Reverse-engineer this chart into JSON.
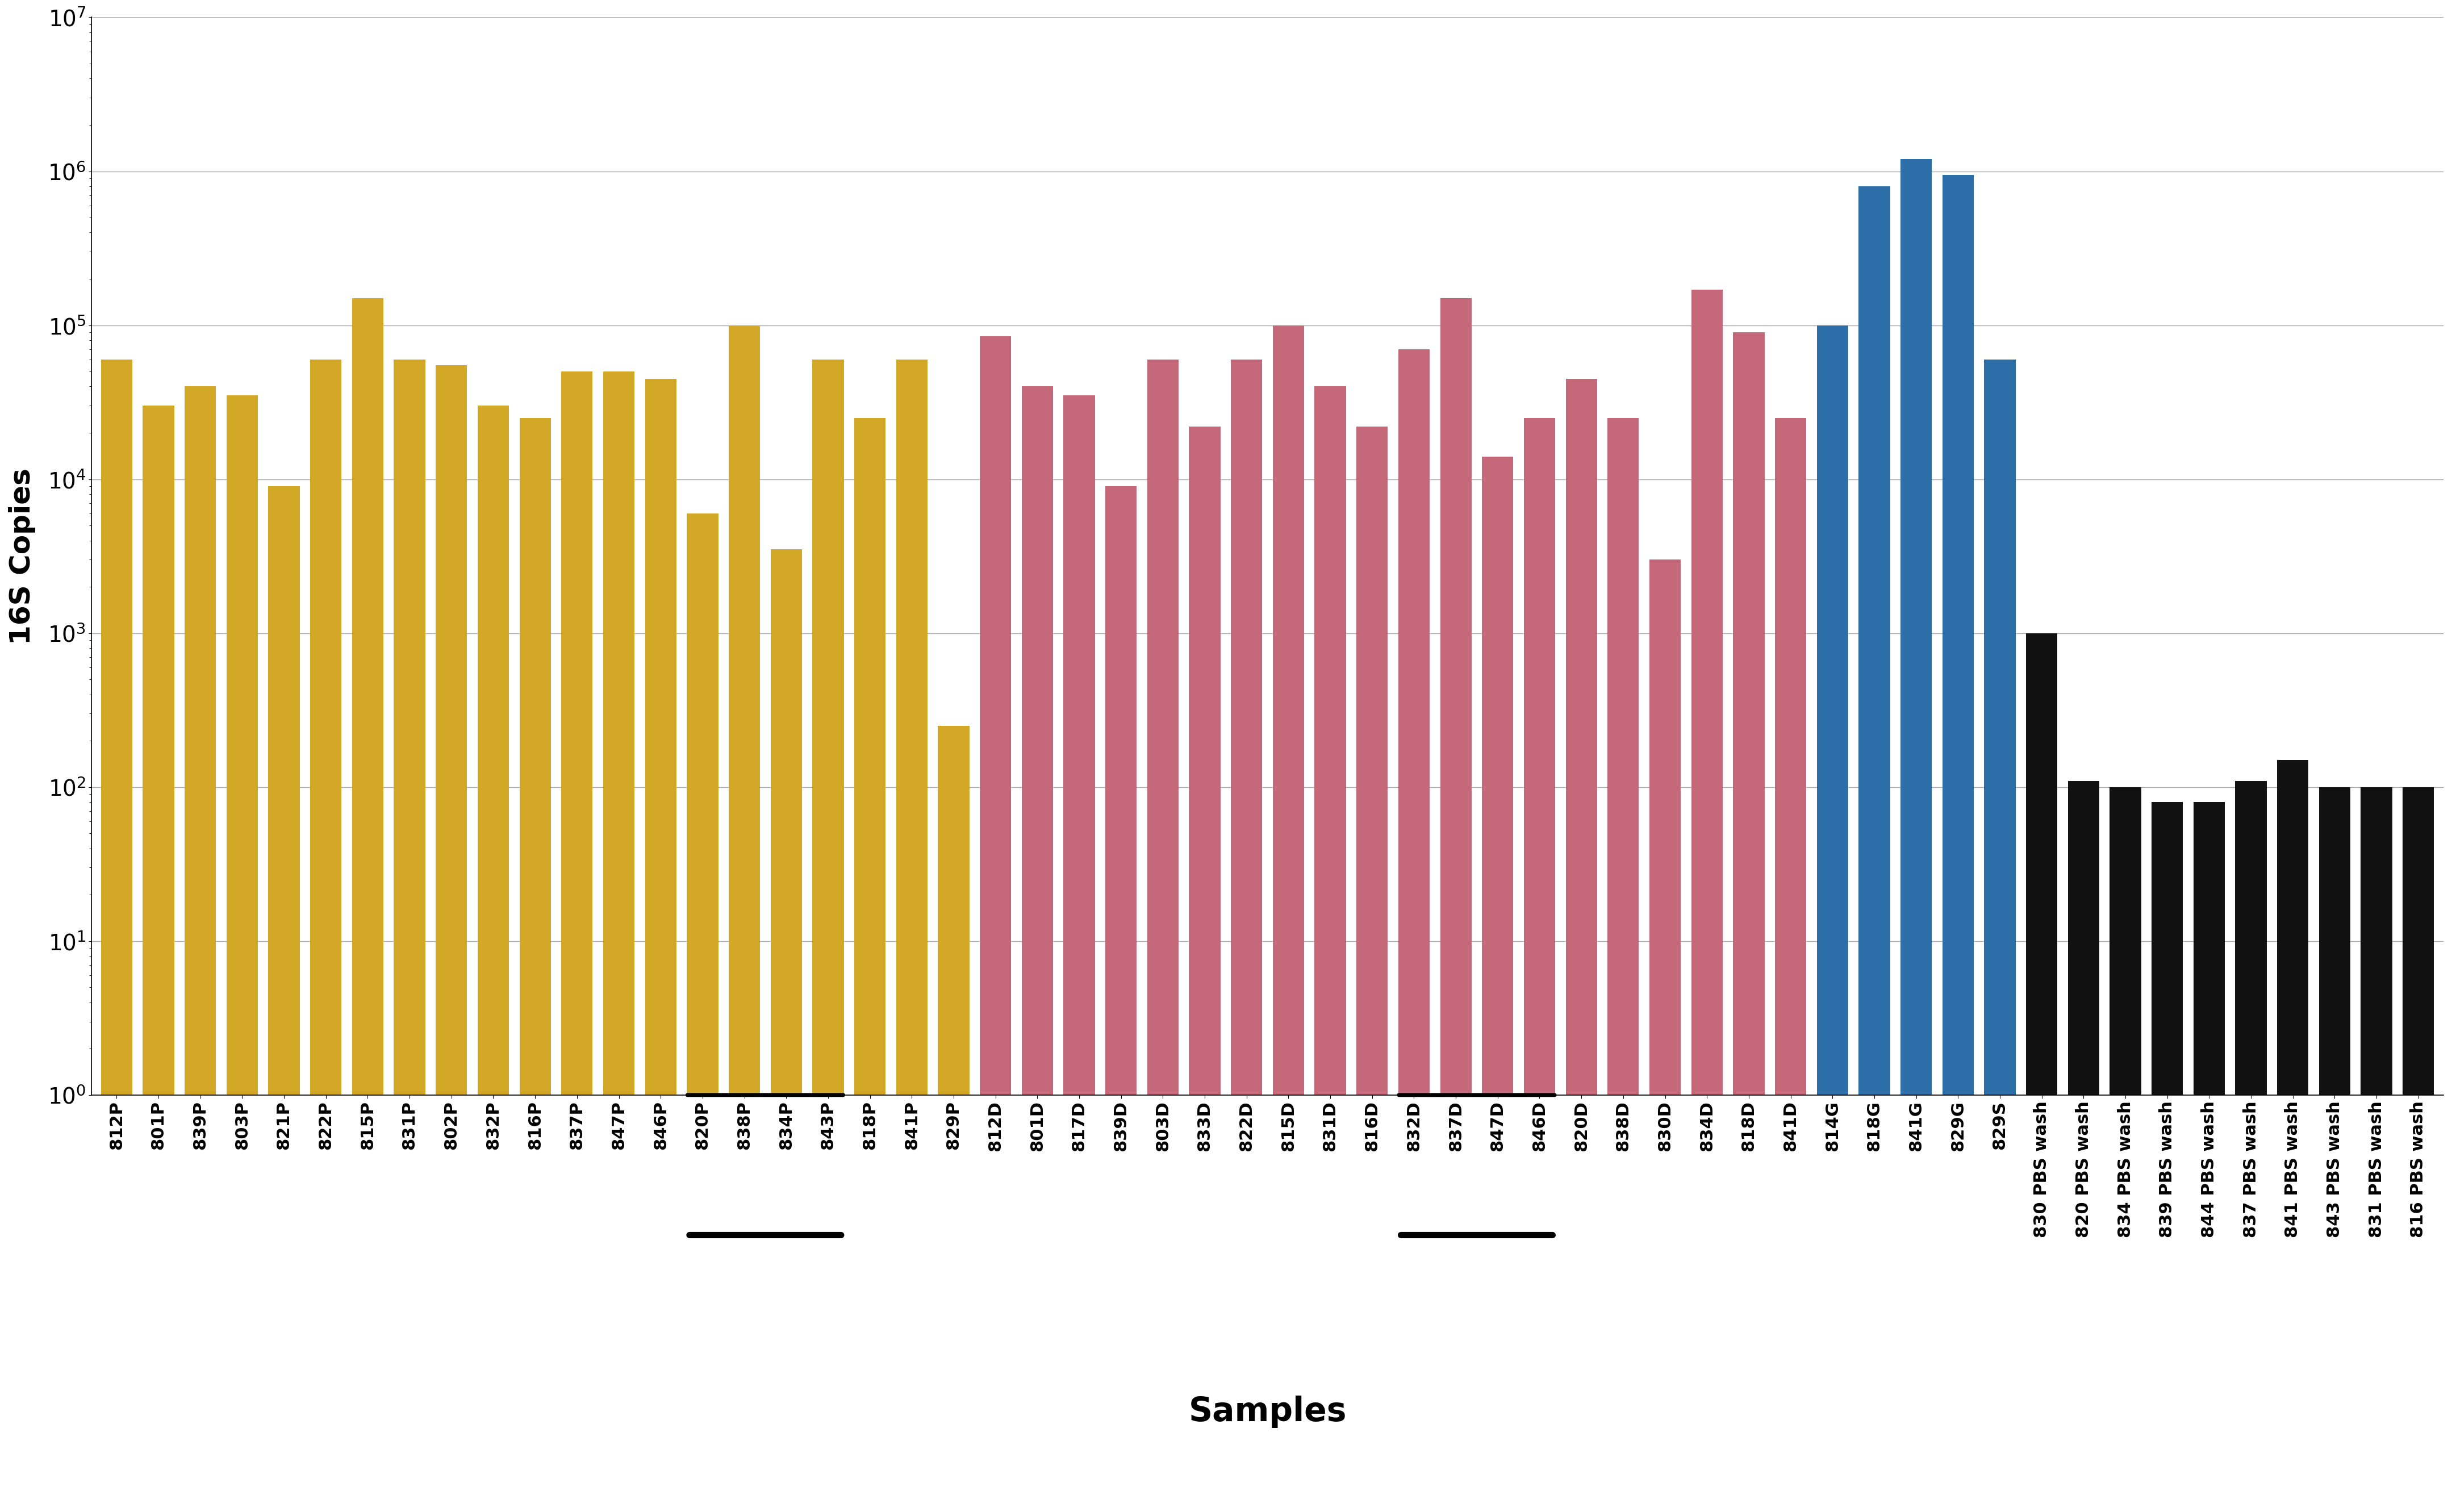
{
  "categories": [
    "812P",
    "801P",
    "839P",
    "803P",
    "821P",
    "822P",
    "815P",
    "831P",
    "802P",
    "832P",
    "816P",
    "837P",
    "847P",
    "846P",
    "820P",
    "838P",
    "834P",
    "843P",
    "818P",
    "841P",
    "829P",
    "812D",
    "801D",
    "817D",
    "839D",
    "803D",
    "833D",
    "822D",
    "815D",
    "831D",
    "816D",
    "832D",
    "837D",
    "847D",
    "846D",
    "820D",
    "838D",
    "830D",
    "834D",
    "818D",
    "841D",
    "814G",
    "818G",
    "841G",
    "829G",
    "829S",
    "830 PBS wash",
    "820 PBS wash",
    "834 PBS wash",
    "839 PBS wash",
    "844 PBS wash",
    "837 PBS wash",
    "841 PBS wash",
    "843 PBS wash",
    "831 PBS wash",
    "816 PBS wash"
  ],
  "values": [
    60000,
    30000,
    40000,
    35000,
    9000,
    60000,
    150000,
    60000,
    55000,
    30000,
    25000,
    50000,
    50000,
    45000,
    6000,
    100000,
    3500,
    60000,
    25000,
    60000,
    250,
    85000,
    40000,
    35000,
    9000,
    60000,
    22000,
    60000,
    100000,
    40000,
    22000,
    70000,
    150000,
    14000,
    25000,
    45000,
    25000,
    3000,
    170000,
    90000,
    25000,
    100000,
    800000,
    1200000,
    950000,
    60000,
    1000,
    110,
    100,
    80,
    80,
    110,
    150,
    100,
    100,
    100
  ],
  "colors": [
    "#D4A827",
    "#D4A827",
    "#D4A827",
    "#D4A827",
    "#D4A827",
    "#D4A827",
    "#D4A827",
    "#D4A827",
    "#D4A827",
    "#D4A827",
    "#D4A827",
    "#D4A827",
    "#D4A827",
    "#D4A827",
    "#D4A827",
    "#D4A827",
    "#D4A827",
    "#D4A827",
    "#D4A827",
    "#D4A827",
    "#D4A827",
    "#C4687A",
    "#C4687A",
    "#C4687A",
    "#C4687A",
    "#C4687A",
    "#C4687A",
    "#C4687A",
    "#C4687A",
    "#C4687A",
    "#C4687A",
    "#C4687A",
    "#C4687A",
    "#C4687A",
    "#C4687A",
    "#C4687A",
    "#C4687A",
    "#C4687A",
    "#C4687A",
    "#C4687A",
    "#C4687A",
    "#2B6EA8",
    "#2B6EA8",
    "#2B6EA8",
    "#2B6EA8",
    "#2B6EA8",
    "#111111",
    "#111111",
    "#111111",
    "#111111",
    "#111111",
    "#111111",
    "#111111",
    "#111111",
    "#111111",
    "#111111"
  ],
  "underline_groups": [
    {
      "start": 14,
      "end": 17
    },
    {
      "start": 31,
      "end": 34
    }
  ],
  "ylabel": "16S Copies",
  "xlabel": "Samples",
  "ylim_min": 1,
  "ylim_max": 10000000,
  "background_color": "#ffffff",
  "grid_color": "#aaaaaa",
  "ylabel_fontsize": 36,
  "xlabel_fontsize": 42,
  "tick_fontsize": 22
}
